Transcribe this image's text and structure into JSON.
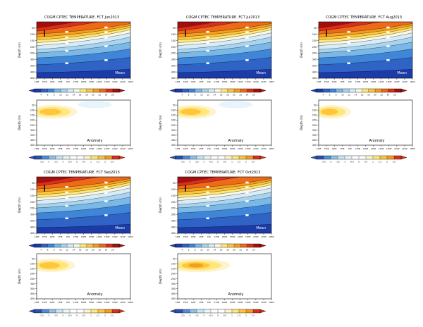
{
  "figure": {
    "background": "#ffffff"
  },
  "colors": {
    "frame": "#000000",
    "text": "#000000",
    "mean_annotation_text": "#ffffff",
    "anomaly_annotation_text": "#000000",
    "mean_scale": [
      "#1c3aa8",
      "#2f63c6",
      "#3f86d8",
      "#7ab8e8",
      "#a8d4f0",
      "#d8ecf8",
      "#f8f8ea",
      "#ffe878",
      "#fdc63e",
      "#f59d1e",
      "#ee6a18",
      "#d8301a",
      "#a30f0f"
    ],
    "anomaly_scale": [
      "#2a4fae",
      "#4f8ed8",
      "#8fc1e8",
      "#c9e6f4",
      "#e8f5fb",
      "#ffffff",
      "#ffffff",
      "#fdf3cd",
      "#ffe87a",
      "#fdc63e",
      "#f59d1e",
      "#d8301a"
    ],
    "anomaly_blob": {
      "outer": "#fdf3cd",
      "mid": "#ffe87a",
      "core": "#fdc63e",
      "hot": "#f59d1e",
      "cool": "#e6f4fb"
    }
  },
  "axes": {
    "ylabel": "Depth (m)",
    "yticks": [
      "50",
      "100",
      "150",
      "200",
      "250",
      "300",
      "350",
      "400",
      "450"
    ],
    "xticks": [
      "140E",
      "150E",
      "160E",
      "170E",
      "180",
      "170W",
      "160W",
      "150W",
      "140W",
      "130W",
      "120W",
      "110W",
      "100W"
    ]
  },
  "colorbars": {
    "mean_labels": [
      "4",
      "6",
      "8",
      "10",
      "12",
      "14",
      "16",
      "18",
      "20",
      "22",
      "24",
      "26"
    ],
    "anomaly_labels": [
      "-2.5",
      "-2",
      "-1.5",
      "-1",
      "-0.5",
      "0",
      "0.5",
      "1",
      "1.5",
      "2",
      "2.5"
    ]
  },
  "chart_data": [
    {
      "type": "heatmap",
      "variant": "mean",
      "title": "COGM CPTEC TEMPERATURE. FCT Jun2013",
      "annotation": "Mean",
      "ylabel": "Depth (m)",
      "x_range": [
        "140E",
        "100W"
      ],
      "y_range_m": [
        0,
        450
      ],
      "contour_levels_c": [
        4,
        6,
        8,
        10,
        12,
        14,
        16,
        18,
        20,
        22,
        24,
        26,
        28
      ],
      "surface_max_c": 30,
      "thermocline_20c_depth_m": {
        "west_140E": 170,
        "east_100W": 60
      }
    },
    {
      "type": "heatmap",
      "variant": "mean",
      "title": "COGM CPTEC TEMPERATURE. FCT Jul2013",
      "annotation": "Mean",
      "ylabel": "Depth (m)",
      "x_range": [
        "140E",
        "100W"
      ],
      "y_range_m": [
        0,
        450
      ],
      "contour_levels_c": [
        4,
        6,
        8,
        10,
        12,
        14,
        16,
        18,
        20,
        22,
        24,
        26,
        28
      ],
      "surface_max_c": 30,
      "thermocline_20c_depth_m": {
        "west_140E": 170,
        "east_100W": 60
      }
    },
    {
      "type": "heatmap",
      "variant": "mean",
      "title": "COGM CPTEC TEMPERATURE. FCT Aug2013",
      "annotation": "Mean",
      "ylabel": "Depth (m)",
      "x_range": [
        "140E",
        "100W"
      ],
      "y_range_m": [
        0,
        450
      ],
      "contour_levels_c": [
        4,
        6,
        8,
        10,
        12,
        14,
        16,
        18,
        20,
        22,
        24,
        26,
        28
      ],
      "surface_max_c": 30,
      "thermocline_20c_depth_m": {
        "west_140E": 175,
        "east_100W": 60
      }
    },
    {
      "type": "heatmap",
      "variant": "anomaly",
      "annotation": "Anomaly",
      "ylabel": "Depth (m)",
      "x_range": [
        "140E",
        "100W"
      ],
      "y_range_m": [
        0,
        450
      ],
      "anomaly_range_c": [
        -2.5,
        2.5
      ],
      "warm_anomaly": {
        "lon_center": "160E",
        "depth_center_m": 110,
        "peak_c": 1.5
      },
      "blob_extent": 1.0,
      "has_cool_patch": true,
      "strong_core": false
    },
    {
      "type": "heatmap",
      "variant": "anomaly",
      "annotation": "Anomaly",
      "ylabel": "Depth (m)",
      "x_range": [
        "140E",
        "100W"
      ],
      "y_range_m": [
        0,
        450
      ],
      "anomaly_range_c": [
        -2.5,
        2.5
      ],
      "warm_anomaly": {
        "lon_center": "160E",
        "depth_center_m": 110,
        "peak_c": 1.5
      },
      "blob_extent": 0.95,
      "has_cool_patch": true,
      "strong_core": false
    },
    {
      "type": "heatmap",
      "variant": "anomaly",
      "annotation": "Anomaly",
      "ylabel": "Depth (m)",
      "x_range": [
        "140E",
        "100W"
      ],
      "y_range_m": [
        0,
        450
      ],
      "anomaly_range_c": [
        -2.5,
        2.5
      ],
      "warm_anomaly": {
        "lon_center": "155E",
        "depth_center_m": 110,
        "peak_c": 1.0
      },
      "blob_extent": 0.8,
      "has_cool_patch": false,
      "strong_core": false
    },
    {
      "type": "heatmap",
      "variant": "mean",
      "title": "COGM CPTEC TEMPERATURE. FCT Sep2013",
      "annotation": "Mean",
      "ylabel": "Depth (m)",
      "x_range": [
        "140E",
        "100W"
      ],
      "y_range_m": [
        0,
        450
      ],
      "contour_levels_c": [
        4,
        6,
        8,
        10,
        12,
        14,
        16,
        18,
        20,
        22,
        24,
        26,
        28
      ],
      "surface_max_c": 30,
      "thermocline_20c_depth_m": {
        "west_140E": 175,
        "east_100W": 55
      }
    },
    {
      "type": "heatmap",
      "variant": "mean",
      "title": "COGM CPTEC TEMPERATURE. FCT Oct2013",
      "annotation": "Mean",
      "ylabel": "Depth (m)",
      "x_range": [
        "140E",
        "100W"
      ],
      "y_range_m": [
        0,
        450
      ],
      "contour_levels_c": [
        4,
        6,
        8,
        10,
        12,
        14,
        16,
        18,
        20,
        22,
        24,
        26,
        28
      ],
      "surface_max_c": 30,
      "thermocline_20c_depth_m": {
        "west_140E": 175,
        "east_100W": 55
      }
    },
    {
      "type": "heatmap",
      "variant": "anomaly",
      "annotation": "Anomaly",
      "ylabel": "Depth (m)",
      "x_range": [
        "140E",
        "100W"
      ],
      "y_range_m": [
        0,
        450
      ],
      "anomaly_range_c": [
        -2.5,
        2.5
      ],
      "warm_anomaly": {
        "lon_center": "155E",
        "depth_center_m": 110,
        "peak_c": 1.0
      },
      "blob_extent": 0.95,
      "has_cool_patch": false,
      "strong_core": false
    },
    {
      "type": "heatmap",
      "variant": "anomaly",
      "annotation": "Anomaly",
      "ylabel": "Depth (m)",
      "x_range": [
        "140E",
        "100W"
      ],
      "y_range_m": [
        0,
        450
      ],
      "anomaly_range_c": [
        -2.5,
        2.5
      ],
      "warm_anomaly": {
        "lon_center": "165E",
        "depth_center_m": 110,
        "peak_c": 2.0
      },
      "blob_extent": 1.3,
      "has_cool_patch": false,
      "strong_core": true
    }
  ]
}
